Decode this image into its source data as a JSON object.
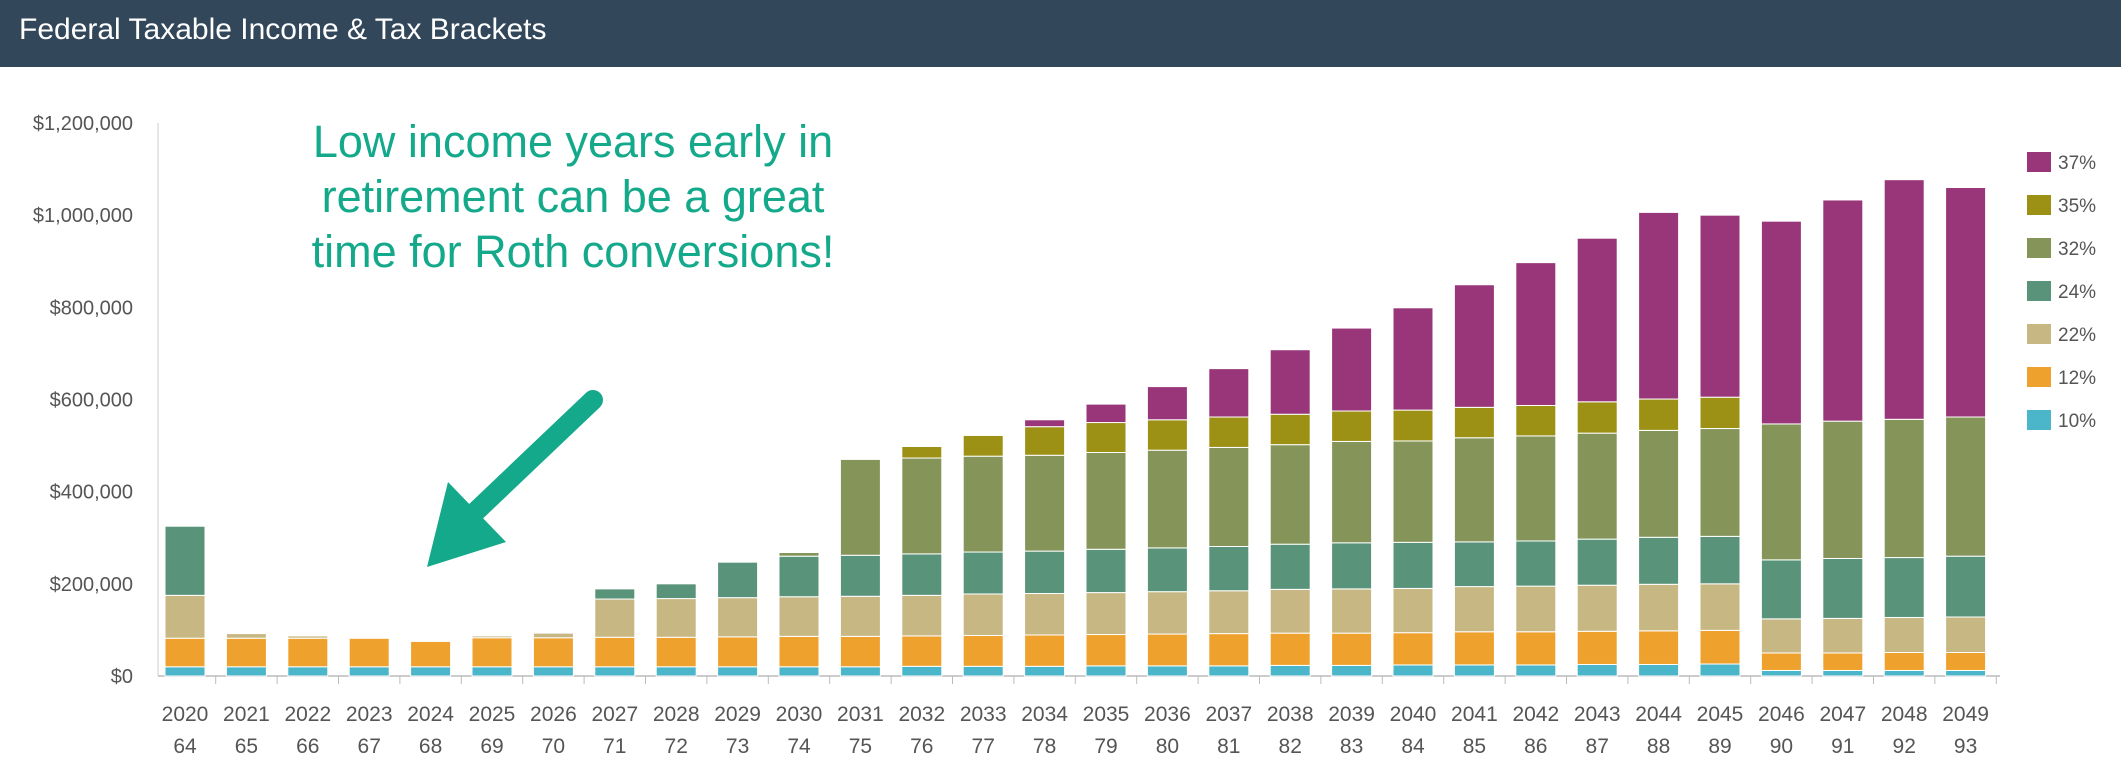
{
  "header": {
    "title": "Federal Taxable Income & Tax Brackets"
  },
  "annotation": {
    "lines": [
      "Low income years early in",
      "retirement can be a great",
      "time for Roth conversions!"
    ],
    "color": "#14a98b"
  },
  "chart_data": {
    "type": "bar",
    "stacked": true,
    "title": "Federal Taxable Income & Tax Brackets",
    "xlabel": "",
    "ylabel": "",
    "ylim": [
      0,
      1200000
    ],
    "yticks": [
      0,
      200000,
      400000,
      600000,
      800000,
      1000000,
      1200000
    ],
    "ytick_labels": [
      "$0",
      "$200,000",
      "$400,000",
      "$600,000",
      "$800,000",
      "$1,000,000",
      "$1,200,000"
    ],
    "grid": false,
    "legend_position": "right",
    "categories": [
      "2020",
      "2021",
      "2022",
      "2023",
      "2024",
      "2025",
      "2026",
      "2027",
      "2028",
      "2029",
      "2030",
      "2031",
      "2032",
      "2033",
      "2034",
      "2035",
      "2036",
      "2037",
      "2038",
      "2039",
      "2040",
      "2041",
      "2042",
      "2043",
      "2044",
      "2045",
      "2046",
      "2047",
      "2048",
      "2049"
    ],
    "ages": [
      "64",
      "65",
      "66",
      "67",
      "68",
      "69",
      "70",
      "71",
      "72",
      "73",
      "74",
      "75",
      "76",
      "77",
      "78",
      "79",
      "80",
      "81",
      "82",
      "83",
      "84",
      "85",
      "86",
      "87",
      "88",
      "89",
      "90",
      "91",
      "92",
      "93"
    ],
    "series": [
      {
        "name": "10%",
        "color": "#4bb6c9",
        "values": [
          20000,
          20000,
          20000,
          20000,
          20000,
          20000,
          20000,
          20000,
          20000,
          20000,
          20000,
          20000,
          21000,
          21000,
          21000,
          22000,
          22000,
          22000,
          23000,
          23000,
          24000,
          24000,
          24000,
          25000,
          25000,
          26000,
          12000,
          12000,
          12000,
          12000
        ]
      },
      {
        "name": "12%",
        "color": "#eea12d",
        "values": [
          62000,
          62000,
          62000,
          62000,
          55000,
          63000,
          63000,
          64000,
          64000,
          65000,
          66000,
          66000,
          66000,
          67000,
          68000,
          68000,
          69000,
          70000,
          70000,
          70000,
          70000,
          72000,
          72000,
          72000,
          73000,
          73000,
          38000,
          38000,
          39000,
          39000
        ]
      },
      {
        "name": "22%",
        "color": "#c6b783",
        "values": [
          93000,
          10000,
          5000,
          1000,
          0,
          4000,
          10000,
          83000,
          84000,
          85000,
          86000,
          87000,
          88000,
          90000,
          90000,
          91000,
          92000,
          93000,
          95000,
          96000,
          96000,
          98000,
          99000,
          100000,
          101000,
          101000,
          74000,
          75000,
          76000,
          77000
        ]
      },
      {
        "name": "24%",
        "color": "#58937a",
        "values": [
          150000,
          0,
          0,
          0,
          0,
          0,
          0,
          22000,
          32000,
          77000,
          88000,
          89000,
          90000,
          91000,
          92000,
          94000,
          95000,
          96000,
          98000,
          100000,
          100000,
          97000,
          98000,
          100000,
          102000,
          103000,
          128000,
          130000,
          130000,
          132000
        ]
      },
      {
        "name": "32%",
        "color": "#85955a",
        "values": [
          0,
          0,
          0,
          0,
          0,
          0,
          0,
          0,
          0,
          0,
          8000,
          208000,
          208000,
          208000,
          208000,
          210000,
          212000,
          215000,
          216000,
          220000,
          220000,
          226000,
          228000,
          230000,
          232000,
          234000,
          295000,
          298000,
          300000,
          302000
        ]
      },
      {
        "name": "35%",
        "color": "#9c9015",
        "values": [
          0,
          0,
          0,
          0,
          0,
          0,
          0,
          0,
          0,
          0,
          0,
          0,
          25000,
          45000,
          62000,
          65000,
          66000,
          66000,
          66000,
          66000,
          67000,
          66000,
          66000,
          68000,
          68000,
          68000,
          0,
          0,
          0,
          0
        ]
      },
      {
        "name": "37%",
        "color": "#993679",
        "values": [
          0,
          0,
          0,
          0,
          0,
          0,
          0,
          0,
          0,
          0,
          0,
          0,
          0,
          0,
          15000,
          40000,
          72000,
          105000,
          140000,
          180000,
          222000,
          266000,
          310000,
          355000,
          405000,
          395000,
          440000,
          480000,
          520000,
          498000
        ]
      }
    ]
  }
}
